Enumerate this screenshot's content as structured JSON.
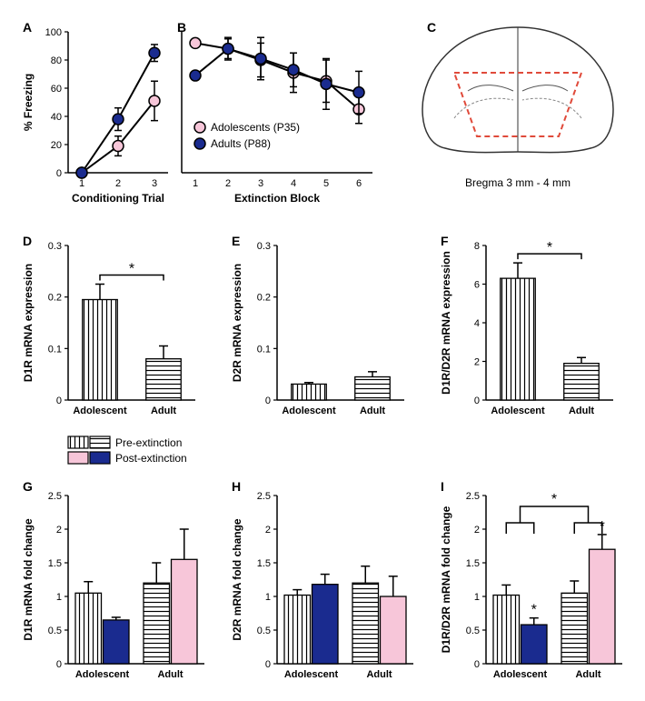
{
  "colors": {
    "adolescent": "#f7c6d9",
    "adolescent_stroke": "#000000",
    "adult": "#1a2b8f",
    "adult_stroke": "#000000",
    "axis": "#000000",
    "bar_stroke": "#000000",
    "diagram_outline": "#333333",
    "diagram_dash": "#e04a3a",
    "text": "#000000"
  },
  "panelA": {
    "label": "A",
    "ylabel": "% Freezing",
    "xlabel": "Conditioning Trial",
    "x": [
      1,
      2,
      3
    ],
    "ylim": [
      0,
      100
    ],
    "yticks": [
      0,
      20,
      40,
      60,
      80,
      100
    ],
    "series": {
      "adolescent": {
        "name": "Adolescents (P35)",
        "y": [
          0,
          19,
          51
        ],
        "err": [
          0,
          7,
          14
        ]
      },
      "adult": {
        "name": "Adults (P88)",
        "y": [
          0,
          38,
          85
        ],
        "err": [
          0,
          8,
          6
        ]
      }
    },
    "marker_radius": 6,
    "line_width": 2
  },
  "panelB": {
    "label": "B",
    "xlabel": "Extinction Block",
    "x": [
      1,
      2,
      3,
      4,
      5,
      6
    ],
    "ylim": [
      0,
      100
    ],
    "series": {
      "adolescent": {
        "y": [
          92,
          88,
          80,
          71,
          65,
          45
        ],
        "err": [
          2,
          8,
          12,
          14,
          15,
          10
        ]
      },
      "adult": {
        "y": [
          69,
          88,
          81,
          73,
          63,
          57
        ],
        "err": [
          3,
          7,
          15,
          12,
          18,
          15
        ]
      }
    },
    "marker_radius": 6,
    "line_width": 2
  },
  "panelC": {
    "label": "C",
    "caption": "Bregma 3 mm - 4 mm"
  },
  "legend": {
    "items": [
      {
        "key": "adolescent",
        "label": "Adolescents (P35)"
      },
      {
        "key": "adult",
        "label": "Adults (P88)"
      }
    ],
    "fontsize": 12
  },
  "panelD": {
    "label": "D",
    "ylabel": "D1R mRNA expression",
    "ylim": [
      0,
      0.3
    ],
    "yticks": [
      0,
      0.1,
      0.2,
      0.3
    ],
    "categories": [
      "Adolescent",
      "Adult"
    ],
    "values": [
      0.195,
      0.08
    ],
    "err": [
      0.03,
      0.025
    ],
    "hatches": [
      "vertical",
      "horizontal"
    ],
    "sig": {
      "pairs": [
        [
          0,
          1
        ]
      ],
      "label": "*"
    },
    "bar_width": 0.55
  },
  "panelE": {
    "label": "E",
    "ylabel": "D2R mRNA expression",
    "ylim": [
      0,
      0.3
    ],
    "yticks": [
      0,
      0.1,
      0.2,
      0.3
    ],
    "categories": [
      "Adolescent",
      "Adult"
    ],
    "values": [
      0.031,
      0.045
    ],
    "err": [
      0.003,
      0.01
    ],
    "hatches": [
      "vertical",
      "horizontal"
    ],
    "bar_width": 0.55
  },
  "panelF": {
    "label": "F",
    "ylabel": "D1R/D2R mRNA expression",
    "ylim": [
      0,
      8
    ],
    "yticks": [
      0,
      2,
      4,
      6,
      8
    ],
    "categories": [
      "Adolescent",
      "Adult"
    ],
    "values": [
      6.3,
      1.9
    ],
    "err": [
      0.8,
      0.3
    ],
    "hatches": [
      "vertical",
      "horizontal"
    ],
    "sig": {
      "pairs": [
        [
          0,
          1
        ]
      ],
      "label": "*"
    },
    "bar_width": 0.55
  },
  "legend2": {
    "items": [
      {
        "hatch": "vertical",
        "fill": "none"
      },
      {
        "hatch": "horizontal",
        "fill": "none"
      },
      {
        "label": "Pre-extinction"
      },
      {
        "fill": "adolescent"
      },
      {
        "fill": "adult"
      },
      {
        "label": "Post-extinction"
      }
    ]
  },
  "panelG": {
    "label": "G",
    "ylabel": "D1R mRNA fold change",
    "ylim": [
      0,
      2.5
    ],
    "yticks": [
      0,
      0.5,
      1.0,
      1.5,
      2.0,
      2.5
    ],
    "groups": [
      "Adolescent",
      "Adult"
    ],
    "conditions": [
      "Pre-extinction",
      "Post-extinction"
    ],
    "values": [
      [
        1.05,
        0.65
      ],
      [
        1.2,
        1.55
      ]
    ],
    "err": [
      [
        0.17,
        0.04
      ],
      [
        0.3,
        0.45
      ]
    ],
    "styles": [
      [
        "hatch-vertical",
        "fill-adult"
      ],
      [
        "hatch-horizontal",
        "fill-adolescent"
      ]
    ],
    "bar_width": 0.38
  },
  "panelH": {
    "label": "H",
    "ylabel": "D2R mRNA fold change",
    "ylim": [
      0,
      2.5
    ],
    "yticks": [
      0,
      0.5,
      1.0,
      1.5,
      2.0,
      2.5
    ],
    "groups": [
      "Adolescent",
      "Adult"
    ],
    "values": [
      [
        1.02,
        1.18
      ],
      [
        1.2,
        1.0
      ]
    ],
    "err": [
      [
        0.08,
        0.15
      ],
      [
        0.25,
        0.3
      ]
    ],
    "styles": [
      [
        "hatch-vertical",
        "fill-adult"
      ],
      [
        "hatch-horizontal",
        "fill-adolescent"
      ]
    ],
    "bar_width": 0.38
  },
  "panelI": {
    "label": "I",
    "ylabel": "D1R/D2R mRNA fold change",
    "ylim": [
      0,
      2.5
    ],
    "yticks": [
      0,
      0.5,
      1.0,
      1.5,
      2.0,
      2.5
    ],
    "groups": [
      "Adolescent",
      "Adult"
    ],
    "values": [
      [
        1.02,
        0.58
      ],
      [
        1.05,
        1.7
      ]
    ],
    "err": [
      [
        0.15,
        0.1
      ],
      [
        0.18,
        0.22
      ]
    ],
    "styles": [
      [
        "hatch-vertical",
        "fill-adult"
      ],
      [
        "hatch-horizontal",
        "fill-adolescent"
      ]
    ],
    "bar_width": 0.38,
    "sig_bars": [
      "post-adolescent",
      "post-adult",
      "interaction"
    ],
    "sig_label": "*"
  }
}
